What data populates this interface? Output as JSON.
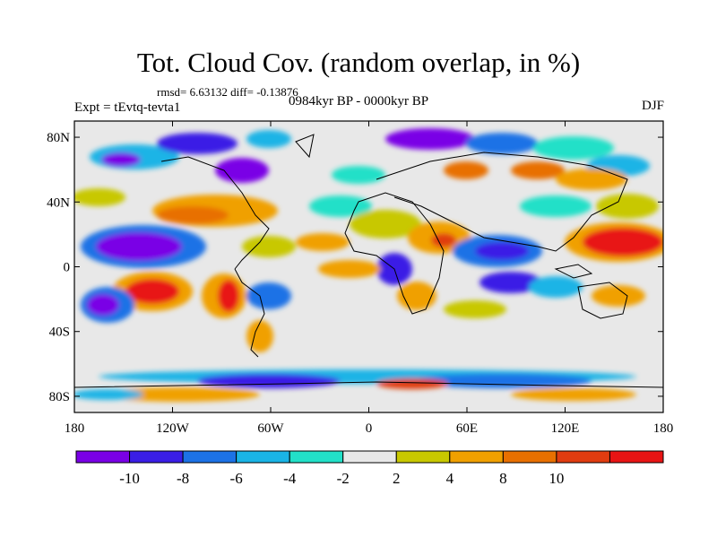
{
  "title": "Tot. Cloud Cov. (random overlap, in %)",
  "stats": "rmsd= 6.63132 diff= -0.13876",
  "experiment": "Expt = tEvtq-tevta1",
  "period": "0984kyr BP - 0000kyr BP",
  "season": "DJF",
  "lat_ticks": [
    "80N",
    "40N",
    "0",
    "40S",
    "80S"
  ],
  "lon_ticks": [
    "180",
    "120W",
    "60W",
    "0",
    "60E",
    "120E",
    "180"
  ],
  "colorbar": {
    "colors": [
      "#7a00e6",
      "#3a1ee6",
      "#1c72e6",
      "#1ab4e6",
      "#22e0c8",
      "#e8e8e8",
      "#c8c800",
      "#f0a000",
      "#e87000",
      "#e03c10",
      "#e81414"
    ],
    "labels": [
      "-10",
      "-8",
      "-6",
      "-4",
      "-2",
      "2",
      "4",
      "8",
      "10"
    ]
  }
}
